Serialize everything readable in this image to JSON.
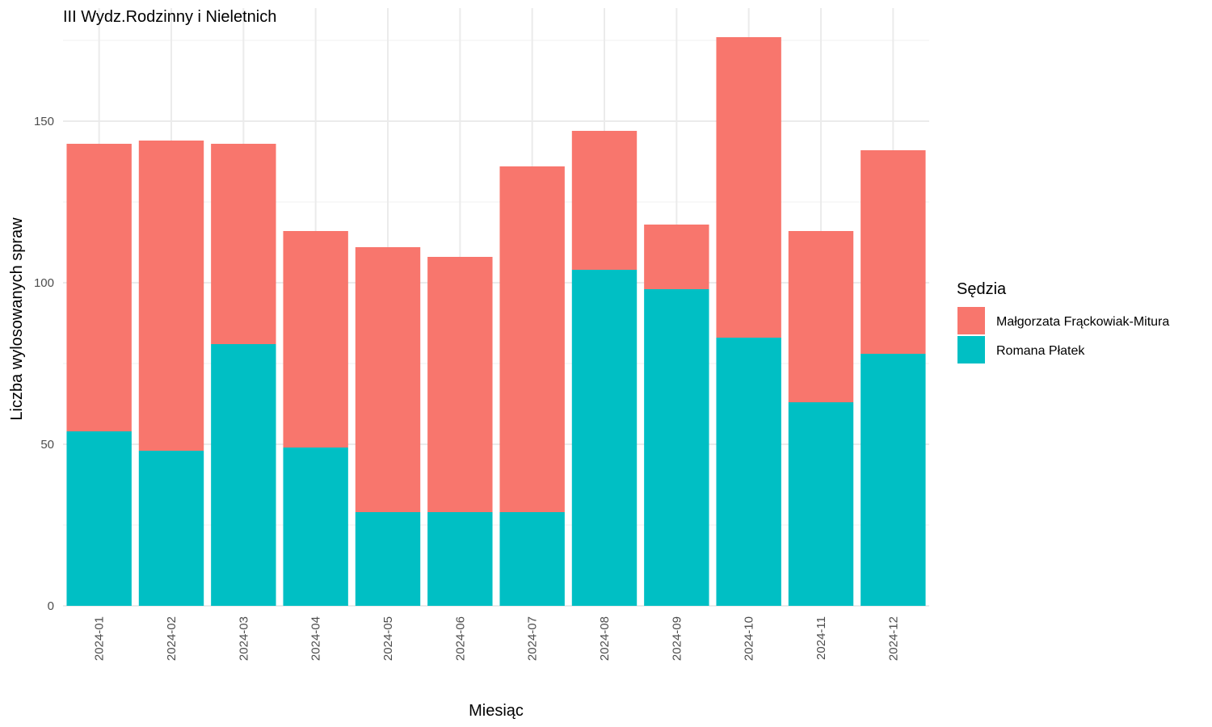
{
  "chart_data": {
    "type": "bar",
    "stacked": true,
    "title": "III Wydz.Rodzinny i Nieletnich",
    "xlabel": "Miesiąc",
    "ylabel": "Liczba wylosowanych spraw",
    "ylim": [
      0,
      180
    ],
    "yticks": [
      0,
      50,
      100,
      150
    ],
    "grid": true,
    "legend": {
      "title": "Sędzia",
      "position": "right"
    },
    "categories": [
      "2024-01",
      "2024-02",
      "2024-03",
      "2024-04",
      "2024-05",
      "2024-06",
      "2024-07",
      "2024-08",
      "2024-09",
      "2024-10",
      "2024-11",
      "2024-12"
    ],
    "series": [
      {
        "name": "Małgorzata Frąckowiak-Mitura",
        "color": "#F8766D",
        "values": [
          89,
          96,
          62,
          67,
          82,
          79,
          107,
          43,
          20,
          93,
          53,
          63
        ]
      },
      {
        "name": "Romana Płatek",
        "color": "#00BFC4",
        "values": [
          54,
          48,
          81,
          49,
          29,
          29,
          29,
          104,
          98,
          83,
          63,
          78
        ]
      }
    ]
  }
}
